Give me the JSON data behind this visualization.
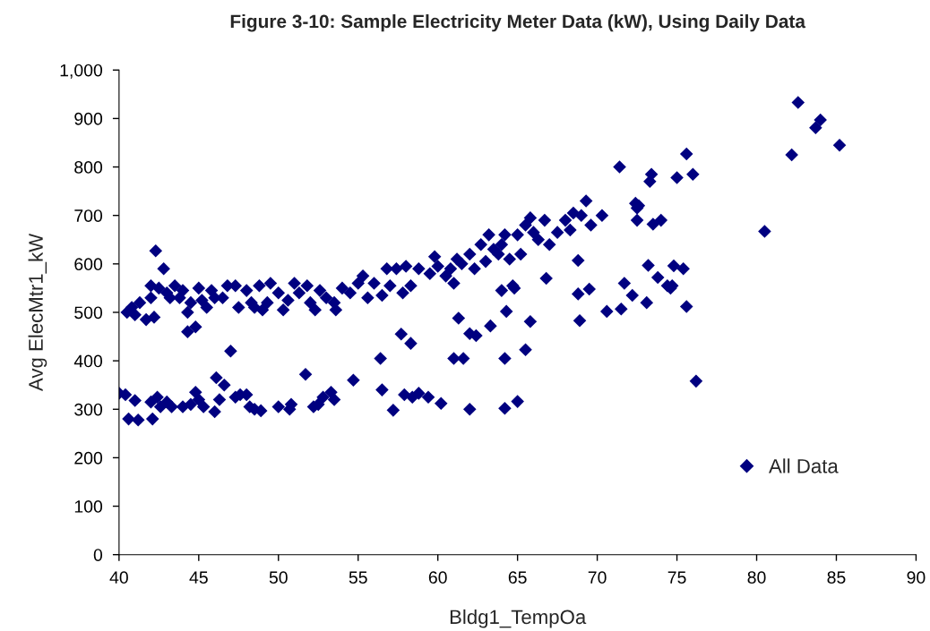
{
  "chart_data": {
    "type": "scatter",
    "title": "Figure 3-10: Sample Electricity Meter Data (kW), Using Daily Data",
    "xlabel": "Bldg1_TempOa",
    "ylabel": "Avg ElecMtr1_kW",
    "xlim": [
      40,
      90
    ],
    "xticks": [
      40,
      45,
      50,
      55,
      60,
      65,
      70,
      75,
      80,
      85,
      90
    ],
    "ylim": [
      0,
      1000
    ],
    "yticks": [
      0,
      100,
      200,
      300,
      400,
      500,
      600,
      700,
      800,
      900,
      {
        "value": 1000,
        "label": "1,000"
      }
    ],
    "grid": false,
    "legend": "bottom right",
    "marker": "diamond",
    "series": [
      {
        "name": "All Data",
        "color": "#000080",
        "x": [
          40.5,
          40.8,
          41,
          41.3,
          41.7,
          42,
          42,
          42.2,
          42.3,
          42.5,
          42.8,
          43,
          43.2,
          43.5,
          43.8,
          44,
          44.3,
          44.5,
          44.3,
          44.8,
          45,
          45.2,
          45.5,
          45.8,
          46,
          46.5,
          46.8,
          47,
          47.3,
          47.5,
          48,
          48.3,
          48.5,
          48.8,
          49,
          49.3,
          49.5,
          50,
          50.3,
          50.6,
          51,
          51.3,
          51.8,
          52,
          52.3,
          52.6,
          53,
          53.5,
          53.6,
          54,
          54.5,
          55,
          55.3,
          55.6,
          56,
          56.5,
          56.8,
          57,
          57.4,
          57.8,
          58,
          58.3,
          58.8,
          59.5,
          59.8,
          60,
          60.5,
          60.8,
          61,
          61.2,
          61.5,
          62,
          62.3,
          62.7,
          63,
          63.2,
          63.5,
          63.8,
          64,
          64.2,
          64.5,
          65,
          65.2,
          65.5,
          65.8,
          66,
          66.3,
          66.7,
          67,
          67.5,
          68,
          68.3,
          68.5,
          69,
          69.3,
          69.6,
          70.3,
          40,
          40.4,
          40.6,
          41,
          41.2,
          42,
          42.1,
          42.4,
          42.6,
          43,
          43.3,
          44,
          44.5,
          44.8,
          45,
          45.3,
          46,
          46.1,
          46.3,
          46.6,
          47.3,
          47.6,
          48,
          48.2,
          48.5,
          48.9,
          50,
          50.7,
          50.8,
          51.7,
          52.2,
          52.5,
          52.8,
          53.3,
          53.5,
          54.7,
          56.4,
          56.5,
          57.2,
          57.7,
          57.9,
          58.3,
          58.4,
          58.8,
          59.4,
          60.2,
          61,
          61.3,
          61.6,
          62,
          62,
          62.4,
          63.3,
          64,
          64.2,
          64.3,
          64.2,
          64.7,
          64.8,
          65,
          65.5,
          65.8,
          66.8,
          68.8,
          68.8,
          68.9,
          69.5,
          70.6,
          71.4,
          71.5,
          71.7,
          72.2,
          72.4,
          72.5,
          72.5,
          72.6,
          73.1,
          73.2,
          73.3,
          73.4,
          73.5,
          73.8,
          74,
          74.4,
          74.6,
          74.8,
          74.7,
          75,
          75.4,
          75.6,
          75.6,
          76,
          76.2,
          80.5,
          82.2,
          82.6,
          83.7,
          84,
          85.2
        ],
        "values": [
          500,
          510,
          495,
          520,
          485,
          555,
          530,
          490,
          627,
          550,
          590,
          540,
          530,
          555,
          530,
          545,
          500,
          520,
          460,
          470,
          550,
          525,
          510,
          545,
          530,
          530,
          555,
          420,
          555,
          510,
          545,
          520,
          510,
          555,
          505,
          520,
          560,
          540,
          505,
          525,
          560,
          540,
          555,
          520,
          505,
          545,
          530,
          520,
          505,
          550,
          540,
          560,
          575,
          530,
          560,
          535,
          590,
          555,
          590,
          540,
          595,
          555,
          590,
          580,
          615,
          595,
          575,
          590,
          560,
          610,
          600,
          620,
          590,
          640,
          605,
          660,
          630,
          620,
          640,
          660,
          610,
          660,
          620,
          680,
          695,
          665,
          650,
          690,
          640,
          665,
          690,
          670,
          705,
          700,
          730,
          680,
          700,
          333,
          330,
          280,
          318,
          278,
          315,
          280,
          325,
          305,
          315,
          305,
          305,
          310,
          335,
          320,
          305,
          295,
          365,
          320,
          350,
          325,
          330,
          330,
          305,
          300,
          297,
          305,
          300,
          310,
          372,
          305,
          310,
          325,
          335,
          320,
          360,
          405,
          340,
          298,
          455,
          330,
          436,
          325,
          333,
          325,
          312,
          405,
          488,
          405,
          456,
          300,
          452,
          472,
          545,
          405,
          502,
          302,
          555,
          550,
          316,
          423,
          481,
          570,
          538,
          607,
          483,
          548,
          502,
          800,
          507,
          560,
          535,
          725,
          715,
          690,
          720,
          520,
          597,
          770,
          785,
          682,
          572,
          690,
          555,
          550,
          596,
          555,
          778,
          590,
          512,
          827,
          785,
          358,
          667,
          825,
          933,
          881,
          897,
          845
        ]
      }
    ]
  }
}
